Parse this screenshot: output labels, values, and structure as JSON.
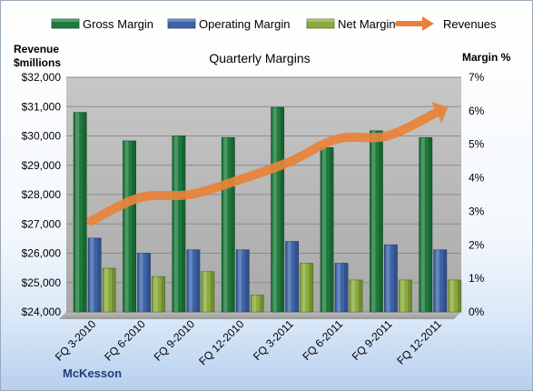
{
  "chart_data": {
    "type": "bar",
    "title": "Quarterly Margins",
    "categories": [
      "FQ 3-2010",
      "FQ 6-2010",
      "FQ 9-2010",
      "FQ 12-2010",
      "FQ 3-2011",
      "FQ 6-2011",
      "FQ 9-2011",
      "FQ 12-2011"
    ],
    "series": [
      {
        "name": "Gross Margin",
        "axis": "right",
        "color": "#1e7a3c",
        "values": [
          5.95,
          5.1,
          5.25,
          5.2,
          6.1,
          4.9,
          5.4,
          5.2
        ]
      },
      {
        "name": "Operating Margin",
        "axis": "right",
        "color": "#3d64a8",
        "values": [
          2.2,
          1.75,
          1.85,
          1.85,
          2.1,
          1.45,
          2.0,
          1.85
        ]
      },
      {
        "name": "Net Margin",
        "axis": "right",
        "color": "#8aaa3c",
        "values": [
          1.3,
          1.05,
          1.2,
          0.5,
          1.45,
          0.95,
          0.95,
          0.95
        ]
      }
    ],
    "line": {
      "name": "Revenues",
      "axis": "left",
      "color": "#e8823a",
      "values": [
        27100,
        27900,
        28000,
        28500,
        29100,
        29900,
        30000,
        30800
      ]
    },
    "left_axis": {
      "label_line1": "Revenue",
      "label_line2": "$millions",
      "min": 24000,
      "max": 32000,
      "step": 1000,
      "ticks": [
        "$24,000",
        "$25,000",
        "$26,000",
        "$27,000",
        "$28,000",
        "$29,000",
        "$30,000",
        "$31,000",
        "$32,000"
      ]
    },
    "right_axis": {
      "label": "Margin %",
      "min": 0,
      "max": 7,
      "step": 1,
      "ticks": [
        "0%",
        "1%",
        "2%",
        "3%",
        "4%",
        "5%",
        "6%",
        "7%"
      ]
    },
    "legend_position": "top",
    "grid": true,
    "footer": "McKesson"
  }
}
